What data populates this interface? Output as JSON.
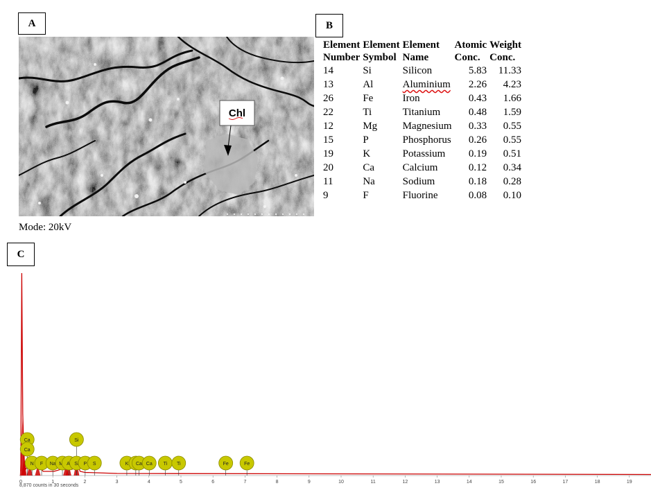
{
  "panel_a": {
    "label": "A",
    "callout": "Chl",
    "mode": "Mode: 20kV"
  },
  "panel_b": {
    "label": "B",
    "headers": [
      {
        "line1": "Element",
        "line2": "Number"
      },
      {
        "line1": "Element",
        "line2": "Symbol"
      },
      {
        "line1": "Element",
        "line2": "Name"
      },
      {
        "line1": "Atomic",
        "line2": "Conc."
      },
      {
        "line1": "Weight",
        "line2": "Conc."
      }
    ],
    "rows": [
      {
        "number": "14",
        "symbol": "Si",
        "name": "Silicon",
        "atomic": "5.83",
        "weight": "11.33"
      },
      {
        "number": "13",
        "symbol": "Al",
        "name": "Aluminium",
        "atomic": "2.26",
        "weight": "4.23"
      },
      {
        "number": "26",
        "symbol": "Fe",
        "name": "Iron",
        "atomic": "0.43",
        "weight": "1.66"
      },
      {
        "number": "22",
        "symbol": "Ti",
        "name": "Titanium",
        "atomic": "0.48",
        "weight": "1.59"
      },
      {
        "number": "12",
        "symbol": "Mg",
        "name": "Magnesium",
        "atomic": "0.33",
        "weight": "0.55"
      },
      {
        "number": "15",
        "symbol": "P",
        "name": "Phosphorus",
        "atomic": "0.26",
        "weight": "0.55"
      },
      {
        "number": "19",
        "symbol": "K",
        "name": "Potassium",
        "atomic": "0.19",
        "weight": "0.51"
      },
      {
        "number": "20",
        "symbol": "Ca",
        "name": "Calcium",
        "atomic": "0.12",
        "weight": "0.34"
      },
      {
        "number": "11",
        "symbol": "Na",
        "name": "Sodium",
        "atomic": "0.18",
        "weight": "0.28"
      },
      {
        "number": "9",
        "symbol": "F",
        "name": "Fluorine",
        "atomic": "0.08",
        "weight": "0.10"
      }
    ]
  },
  "panel_c": {
    "label": "C"
  },
  "chart_data": {
    "type": "line",
    "title": "",
    "xlabel": "",
    "ylabel": "",
    "footer": "8,870 counts in 30 seconds",
    "xlim": [
      0,
      20
    ],
    "x_ticks": [
      "0",
      "1",
      "2",
      "3",
      "4",
      "5",
      "6",
      "7",
      "8",
      "9",
      "10",
      "11",
      "12",
      "13",
      "14",
      "15",
      "16",
      "17",
      "18",
      "19"
    ],
    "line_color": "#cc0000",
    "marker_color": "#c8c800",
    "grid": false,
    "spectrum": [
      {
        "x": 0.0,
        "y": 0.02
      },
      {
        "x": 0.03,
        "y": 0.98
      },
      {
        "x": 0.06,
        "y": 0.3
      },
      {
        "x": 0.1,
        "y": 0.08
      },
      {
        "x": 0.15,
        "y": 0.03
      },
      {
        "x": 0.28,
        "y": 0.06
      },
      {
        "x": 0.35,
        "y": 0.03
      },
      {
        "x": 0.53,
        "y": 0.05
      },
      {
        "x": 0.7,
        "y": 0.02
      },
      {
        "x": 1.04,
        "y": 0.02
      },
      {
        "x": 1.25,
        "y": 0.03
      },
      {
        "x": 1.41,
        "y": 0.05
      },
      {
        "x": 1.49,
        "y": 0.06
      },
      {
        "x": 1.6,
        "y": 0.03
      },
      {
        "x": 1.74,
        "y": 0.07
      },
      {
        "x": 1.85,
        "y": 0.02
      },
      {
        "x": 2.0,
        "y": 0.015
      },
      {
        "x": 3.0,
        "y": 0.01
      },
      {
        "x": 20.0,
        "y": 0.005
      }
    ],
    "peak_markers": [
      {
        "label": "Ca",
        "x": 0.2,
        "row": 2
      },
      {
        "label": "Ca",
        "x": 0.2,
        "row": 1
      },
      {
        "label": "N",
        "x": 0.35,
        "row": 0
      },
      {
        "label": "F",
        "x": 0.65,
        "row": 0
      },
      {
        "label": "Na",
        "x": 1.0,
        "row": 0
      },
      {
        "label": "Mg",
        "x": 1.3,
        "row": 0
      },
      {
        "label": "Al",
        "x": 1.5,
        "row": 0
      },
      {
        "label": "Si",
        "x": 1.74,
        "row": 2
      },
      {
        "label": "Si",
        "x": 1.74,
        "row": 0
      },
      {
        "label": "P",
        "x": 2.01,
        "row": 0
      },
      {
        "label": "S",
        "x": 2.3,
        "row": 0
      },
      {
        "label": "K",
        "x": 3.31,
        "row": 0
      },
      {
        "label": "K",
        "x": 3.59,
        "row": 0
      },
      {
        "label": "Ca",
        "x": 3.69,
        "row": 0
      },
      {
        "label": "Ca",
        "x": 4.01,
        "row": 0
      },
      {
        "label": "Ti",
        "x": 4.51,
        "row": 0
      },
      {
        "label": "Ti",
        "x": 4.93,
        "row": 0
      },
      {
        "label": "Fe",
        "x": 6.4,
        "row": 0
      },
      {
        "label": "Fe",
        "x": 7.06,
        "row": 0
      }
    ]
  }
}
